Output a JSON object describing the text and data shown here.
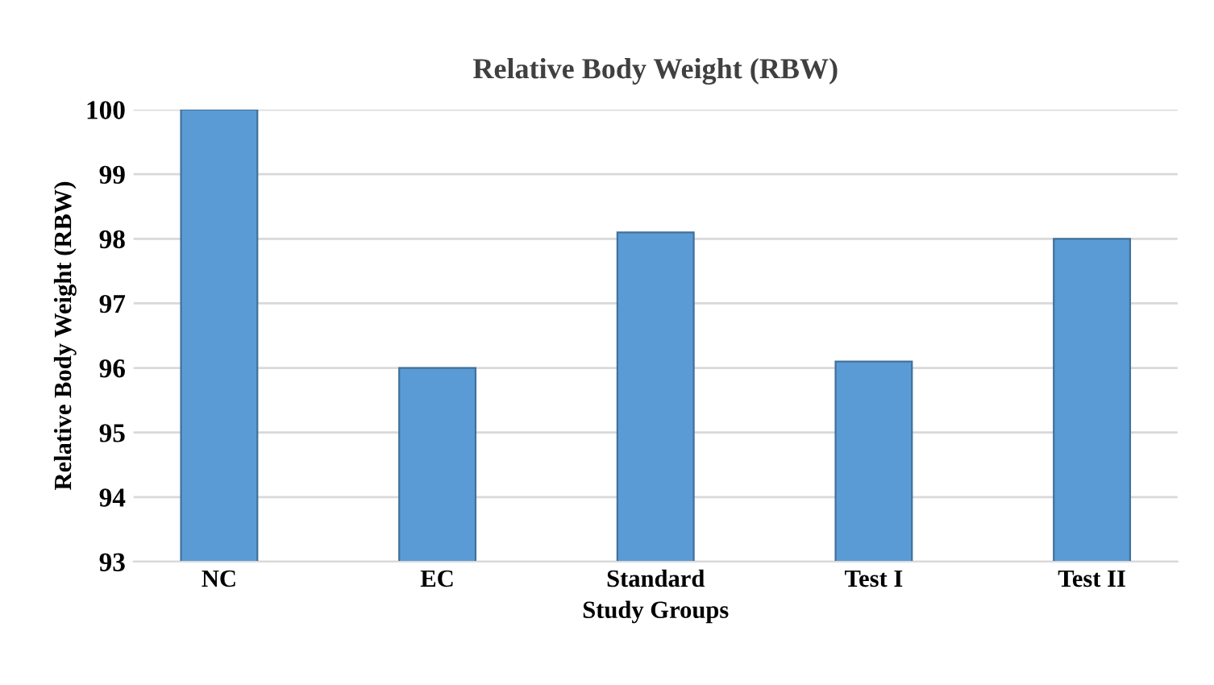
{
  "chart_data": {
    "type": "bar",
    "title": "Relative Body Weight (RBW)",
    "xlabel": "Study Groups",
    "ylabel": "Relative Body Weight (RBW)",
    "categories": [
      "NC",
      "EC",
      "Standard",
      "Test I",
      "Test II"
    ],
    "values": [
      100.0,
      96.0,
      98.1,
      96.1,
      98.0
    ],
    "color": "#5b9bd5",
    "ylim": [
      93,
      100
    ],
    "yticks": [
      93,
      94,
      95,
      96,
      97,
      98,
      99,
      100
    ],
    "grid": "y"
  }
}
